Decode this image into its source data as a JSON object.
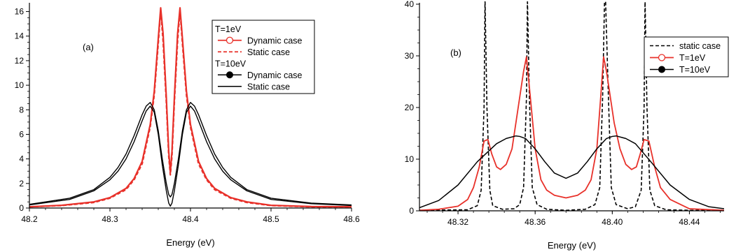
{
  "chart_data": [
    {
      "type": "line",
      "panel_label": "(a)",
      "xlabel": "Energy (eV)",
      "ylabel": "",
      "xlim": [
        48.2,
        48.6
      ],
      "ylim": [
        0,
        16.6
      ],
      "xticks": [
        48.2,
        48.3,
        48.4,
        48.5,
        48.6
      ],
      "xtick_labels": [
        "48.2",
        "48.3",
        "48.4",
        "48.5",
        "48.6"
      ],
      "yticks": [
        0,
        2,
        4,
        6,
        8,
        10,
        12,
        14,
        16
      ],
      "ytick_labels": [
        "0",
        "2",
        "4",
        "6",
        "8",
        "10",
        "12",
        "14",
        "16"
      ],
      "grid": false,
      "legend_position": "top-right",
      "legend": [
        {
          "kind": "header",
          "text": "T=1eV"
        },
        {
          "kind": "entry",
          "text": "Dynamic case",
          "color": "#e8312a",
          "style": "solid",
          "marker": "open-circle",
          "series": 0
        },
        {
          "kind": "entry",
          "text": "Static case",
          "color": "#e8312a",
          "style": "dashed",
          "marker": "none",
          "series": 1
        },
        {
          "kind": "header",
          "text": "T=10eV"
        },
        {
          "kind": "entry",
          "text": "Dynamic case",
          "color": "#000000",
          "style": "solid",
          "marker": "filled-circle",
          "series": 2
        },
        {
          "kind": "entry",
          "text": "Static case",
          "color": "#000000",
          "style": "solid",
          "marker": "none",
          "series": 3
        }
      ],
      "series": [
        {
          "color": "#e8312a",
          "style": "solid",
          "width": 2.2,
          "x": [
            48.2,
            48.24,
            48.28,
            48.3,
            48.32,
            48.33,
            48.34,
            48.35,
            48.355,
            48.36,
            48.363,
            48.366,
            48.37,
            48.373,
            48.375,
            48.377,
            48.38,
            48.384,
            48.387,
            48.39,
            48.395,
            48.4,
            48.41,
            48.42,
            48.43,
            48.45,
            48.47,
            48.5,
            48.55,
            48.6
          ],
          "y": [
            0.1,
            0.22,
            0.5,
            0.85,
            1.6,
            2.4,
            3.8,
            6.8,
            9.5,
            13.8,
            16.3,
            14.2,
            9.0,
            4.6,
            2.9,
            4.6,
            9.0,
            14.2,
            16.3,
            13.8,
            9.5,
            6.8,
            3.8,
            2.4,
            1.6,
            0.85,
            0.5,
            0.22,
            0.12,
            0.1
          ]
        },
        {
          "color": "#e8312a",
          "style": "dashed",
          "width": 2.2,
          "x": [
            48.2,
            48.24,
            48.28,
            48.3,
            48.32,
            48.33,
            48.34,
            48.35,
            48.355,
            48.36,
            48.363,
            48.366,
            48.37,
            48.373,
            48.375,
            48.377,
            48.38,
            48.384,
            48.387,
            48.39,
            48.395,
            48.4,
            48.41,
            48.42,
            48.43,
            48.45,
            48.47,
            48.5,
            48.55,
            48.6
          ],
          "y": [
            0.1,
            0.2,
            0.45,
            0.8,
            1.5,
            2.3,
            3.6,
            6.6,
            9.2,
            13.4,
            16.1,
            13.6,
            8.6,
            4.2,
            2.7,
            4.2,
            8.6,
            13.6,
            16.1,
            13.4,
            9.2,
            6.6,
            3.6,
            2.3,
            1.5,
            0.8,
            0.45,
            0.2,
            0.1,
            0.1
          ]
        },
        {
          "color": "#000000",
          "style": "solid",
          "width": 1.4,
          "x": [
            48.2,
            48.25,
            48.28,
            48.3,
            48.31,
            48.32,
            48.33,
            48.34,
            48.345,
            48.35,
            48.355,
            48.36,
            48.365,
            48.37,
            48.373,
            48.375,
            48.377,
            48.38,
            48.385,
            48.39,
            48.395,
            48.4,
            48.405,
            48.41,
            48.42,
            48.43,
            48.44,
            48.45,
            48.47,
            48.5,
            48.55,
            48.6
          ],
          "y": [
            0.25,
            0.7,
            1.4,
            2.3,
            3.0,
            4.0,
            5.4,
            7.1,
            7.9,
            8.3,
            7.8,
            6.0,
            3.5,
            1.4,
            0.4,
            0.15,
            0.4,
            1.4,
            3.5,
            6.0,
            7.8,
            8.3,
            7.9,
            7.1,
            5.4,
            4.0,
            3.0,
            2.3,
            1.4,
            0.7,
            0.35,
            0.2
          ]
        },
        {
          "color": "#000000",
          "style": "solid",
          "width": 1.4,
          "x": [
            48.2,
            48.25,
            48.28,
            48.3,
            48.31,
            48.32,
            48.33,
            48.34,
            48.345,
            48.35,
            48.355,
            48.36,
            48.365,
            48.37,
            48.373,
            48.375,
            48.377,
            48.38,
            48.385,
            48.39,
            48.395,
            48.4,
            48.405,
            48.41,
            48.42,
            48.43,
            48.44,
            48.45,
            48.47,
            48.5,
            48.55,
            48.6
          ],
          "y": [
            0.3,
            0.8,
            1.5,
            2.5,
            3.3,
            4.4,
            5.9,
            7.6,
            8.3,
            8.6,
            8.0,
            6.3,
            4.0,
            2.0,
            1.1,
            0.9,
            1.1,
            2.0,
            4.0,
            6.3,
            8.0,
            8.6,
            8.3,
            7.6,
            5.9,
            4.4,
            3.3,
            2.5,
            1.5,
            0.8,
            0.4,
            0.25
          ]
        }
      ]
    },
    {
      "type": "line",
      "panel_label": "(b)",
      "xlabel": "Energy (eV)",
      "ylabel": "",
      "xlim": [
        48.3,
        48.458
      ],
      "ylim": [
        0,
        40
      ],
      "xticks": [
        48.32,
        48.36,
        48.4,
        48.44
      ],
      "xtick_labels": [
        "48.32",
        "48.36",
        "48.40",
        "48.44"
      ],
      "yticks": [
        0,
        10,
        20,
        30,
        40
      ],
      "ytick_labels": [
        "0",
        "10",
        "20",
        "30",
        "40"
      ],
      "grid": false,
      "legend_position": "top-right",
      "legend": [
        {
          "kind": "entry",
          "text": "static case",
          "color": "#000000",
          "style": "dashed",
          "marker": "none",
          "series": 0
        },
        {
          "kind": "entry",
          "text": "T=1eV",
          "color": "#e8312a",
          "style": "solid",
          "marker": "open-circle",
          "series": 1
        },
        {
          "kind": "entry",
          "text": "T=10eV",
          "color": "#000000",
          "style": "solid",
          "marker": "filled-circle",
          "series": 2
        }
      ],
      "series": [
        {
          "color": "#000000",
          "style": "dashed",
          "width": 1.6,
          "x": [
            48.3,
            48.325,
            48.33,
            48.332,
            48.3335,
            48.334,
            48.335,
            48.3365,
            48.338,
            48.343,
            48.349,
            48.352,
            48.354,
            48.3555,
            48.356,
            48.357,
            48.3585,
            48.361,
            48.366,
            48.376,
            48.386,
            48.391,
            48.3935,
            48.395,
            48.396,
            48.3965,
            48.398,
            48.3995,
            48.402,
            48.408,
            48.412,
            48.415,
            48.4165,
            48.417,
            48.418,
            48.4195,
            48.422,
            48.428,
            48.44,
            48.458
          ],
          "y": [
            0.1,
            0.2,
            1.0,
            4.0,
            20,
            41,
            20,
            4.0,
            1.0,
            0.3,
            0.4,
            1.2,
            4.5,
            22,
            41,
            22,
            4.5,
            1.2,
            0.3,
            0.1,
            0.3,
            1.2,
            4.5,
            22,
            41,
            41,
            22,
            4.5,
            1.2,
            0.4,
            0.8,
            4.0,
            20,
            41,
            20,
            4.0,
            1.0,
            0.2,
            0.1,
            0.1
          ]
        },
        {
          "color": "#e8312a",
          "style": "solid",
          "width": 1.8,
          "x": [
            48.3,
            48.31,
            48.32,
            48.325,
            48.328,
            48.331,
            48.3335,
            48.3355,
            48.3375,
            48.34,
            48.342,
            48.345,
            48.348,
            48.35,
            48.352,
            48.354,
            48.3555,
            48.3575,
            48.36,
            48.363,
            48.366,
            48.37,
            48.376,
            48.382,
            48.386,
            48.389,
            48.392,
            48.394,
            48.3955,
            48.397,
            48.399,
            48.401,
            48.404,
            48.407,
            48.41,
            48.4125,
            48.4145,
            48.4165,
            48.419,
            48.422,
            48.425,
            48.43,
            48.44,
            48.458
          ],
          "y": [
            0.1,
            0.3,
            0.9,
            2.2,
            4.5,
            8.5,
            13.5,
            13.8,
            11.0,
            8.5,
            8.0,
            9.0,
            12.0,
            17,
            22,
            27,
            29.8,
            22,
            12.0,
            6.0,
            4.0,
            3.0,
            2.5,
            3.0,
            4.0,
            6.0,
            12.0,
            22,
            29.8,
            27,
            22,
            17,
            12.0,
            9.0,
            8.0,
            8.5,
            11.0,
            13.8,
            13.5,
            8.5,
            4.5,
            2.2,
            0.4,
            0.1
          ]
        },
        {
          "color": "#000000",
          "style": "solid",
          "width": 1.5,
          "x": [
            48.3,
            48.31,
            48.32,
            48.33,
            48.34,
            48.345,
            48.35,
            48.352,
            48.355,
            48.36,
            48.365,
            48.37,
            48.376,
            48.382,
            48.387,
            48.392,
            48.397,
            48.4,
            48.402,
            48.407,
            48.412,
            48.42,
            48.43,
            48.44,
            48.45,
            48.458
          ],
          "y": [
            0.6,
            2.0,
            5.0,
            9.5,
            13.0,
            14.0,
            14.5,
            14.4,
            14.0,
            12.0,
            9.5,
            7.3,
            6.3,
            7.3,
            9.5,
            12.0,
            14.0,
            14.4,
            14.5,
            14.0,
            13.0,
            9.5,
            5.0,
            2.2,
            0.8,
            0.4
          ]
        }
      ]
    }
  ]
}
